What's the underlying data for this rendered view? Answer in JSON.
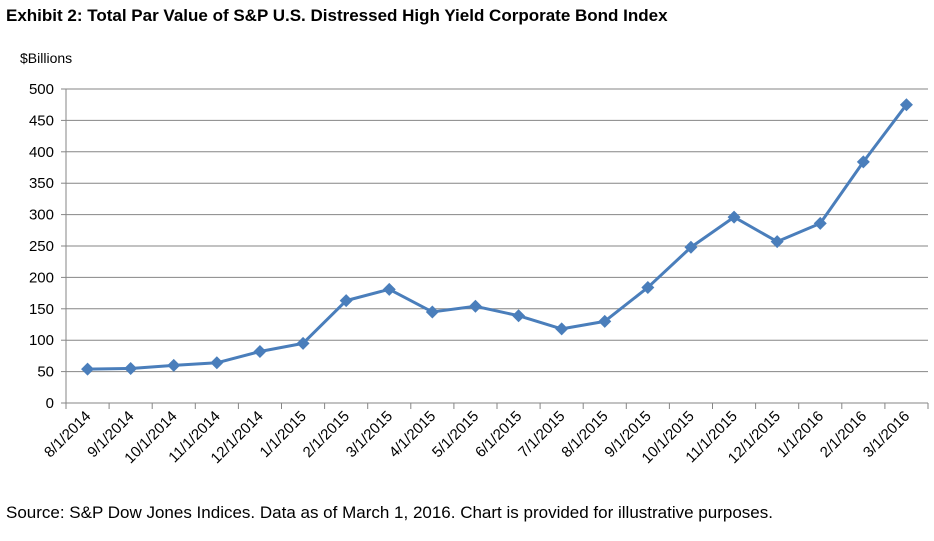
{
  "title": "Exhibit 2: Total Par Value of S&P U.S. Distressed High Yield Corporate Bond Index",
  "source": "Source: S&P Dow Jones Indices.  Data as of March 1, 2016.  Chart is provided for illustrative purposes.",
  "chart_data": {
    "type": "line",
    "title": "Exhibit 2: Total Par Value of S&P U.S. Distressed High Yield Corporate Bond Index",
    "ylabel": "$Billions",
    "xlabel": "",
    "ylim": [
      0,
      500
    ],
    "yticks": [
      0,
      50,
      100,
      150,
      200,
      250,
      300,
      350,
      400,
      450,
      500
    ],
    "grid": true,
    "legend": "none",
    "categories": [
      "8/1/2014",
      "9/1/2014",
      "10/1/2014",
      "11/1/2014",
      "12/1/2014",
      "1/1/2015",
      "2/1/2015",
      "3/1/2015",
      "4/1/2015",
      "5/1/2015",
      "6/1/2015",
      "7/1/2015",
      "8/1/2015",
      "9/1/2015",
      "10/1/2015",
      "11/1/2015",
      "12/1/2015",
      "1/1/2016",
      "2/1/2016",
      "3/1/2016"
    ],
    "series": [
      {
        "values": [
          54,
          55,
          60,
          64,
          82,
          95,
          163,
          181,
          145,
          154,
          139,
          118,
          130,
          184,
          248,
          296,
          257,
          286,
          384,
          475
        ],
        "color": "#4a7ebb",
        "marker": "diamond"
      }
    ]
  }
}
